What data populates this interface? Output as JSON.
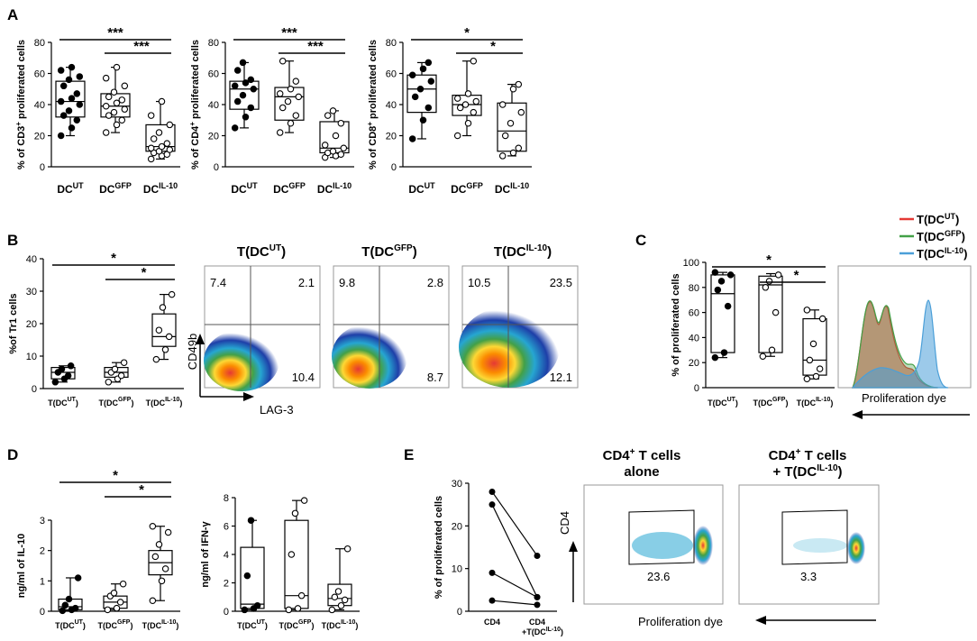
{
  "colors": {
    "red": "#e53935",
    "green": "#43a047",
    "blue": "#4b9fd8",
    "black": "#000000",
    "white": "#ffffff"
  },
  "panels": {
    "A": "A",
    "B": "B",
    "C": "C",
    "D": "D",
    "E": "E"
  },
  "sup": {
    "ut": "UT",
    "gfp": "GFP",
    "il10": "IL-10",
    "plus": "+"
  },
  "cat_prefix": {
    "dc": "DC",
    "t_open": "T(DC",
    "t_close": ")"
  },
  "flow": {
    "b_titles": [
      "T(DC",
      "T(DC",
      "T(DC"
    ],
    "b_axis_y": "CD49b",
    "b_axis_x": "LAG-3",
    "b_quadrants": [
      {
        "ul": "7.4",
        "ur": "2.1",
        "lr": "10.4"
      },
      {
        "ul": "9.8",
        "ur": "2.8",
        "lr": "8.7"
      },
      {
        "ul": "10.5",
        "ur": "23.5",
        "lr": "12.1"
      }
    ],
    "e_titles": [
      [
        "CD4",
        " T cells",
        "alone"
      ],
      [
        "CD4",
        " T cells",
        "+ T(DC"
      ]
    ],
    "e_axis_y": "CD4",
    "e_axis_x": "Proliferation dye",
    "e_gates": [
      "23.6",
      "3.3"
    ]
  },
  "histogram": {
    "axis_label": "Proliferation dye",
    "legend": [
      "T(DC",
      "T(DC",
      "T(DC"
    ]
  },
  "chart_data": [
    {
      "id": "A1",
      "type": "box",
      "ylabel": "% of CD3",
      "ylabel_sup": "+",
      "ylabel_tail": " proliferated cells",
      "ylim": [
        0,
        80
      ],
      "yticks": [
        0,
        20,
        40,
        60,
        80
      ],
      "categories": [
        "DC",
        "DC",
        "DC"
      ],
      "category_sup": [
        "UT",
        "GFP",
        "IL-10"
      ],
      "boxes": [
        {
          "min": 20,
          "q1": 32,
          "median": 42,
          "q3": 55,
          "max": 64,
          "points": [
            20,
            25,
            30,
            33,
            36,
            40,
            42,
            44,
            47,
            52,
            56,
            58,
            62,
            64
          ],
          "filled": true
        },
        {
          "min": 22,
          "q1": 32,
          "median": 39,
          "q3": 47,
          "max": 64,
          "points": [
            22,
            27,
            30,
            33,
            35,
            37,
            39,
            41,
            43,
            45,
            48,
            52,
            57,
            64
          ],
          "filled": false
        },
        {
          "min": 5,
          "q1": 10,
          "median": 13,
          "q3": 27,
          "max": 42,
          "points": [
            5,
            7,
            8,
            9,
            10,
            11,
            12,
            13,
            15,
            18,
            22,
            27,
            33,
            42
          ],
          "filled": false
        }
      ],
      "significance": [
        {
          "from": 0,
          "to": 2,
          "label": "***"
        },
        {
          "from": 1,
          "to": 2,
          "label": "***"
        }
      ]
    },
    {
      "id": "A2",
      "type": "box",
      "ylabel": "% of CD4",
      "ylabel_sup": "+",
      "ylabel_tail": " proliferated cells",
      "ylim": [
        0,
        80
      ],
      "yticks": [
        0,
        20,
        40,
        60,
        80
      ],
      "categories": [
        "DC",
        "DC",
        "DC"
      ],
      "category_sup": [
        "UT",
        "GFP",
        "IL-10"
      ],
      "boxes": [
        {
          "min": 25,
          "q1": 37,
          "median": 50,
          "q3": 55,
          "max": 67,
          "points": [
            25,
            32,
            38,
            42,
            46,
            50,
            52,
            54,
            56,
            62,
            67
          ],
          "filled": true
        },
        {
          "min": 22,
          "q1": 30,
          "median": 45,
          "q3": 51,
          "max": 68,
          "points": [
            22,
            28,
            33,
            38,
            42,
            45,
            47,
            50,
            55,
            68
          ],
          "filled": false
        },
        {
          "min": 6,
          "q1": 9,
          "median": 12,
          "q3": 29,
          "max": 36,
          "points": [
            6,
            7,
            8,
            9,
            10,
            12,
            14,
            20,
            28,
            33,
            36
          ],
          "filled": false
        }
      ],
      "significance": [
        {
          "from": 0,
          "to": 2,
          "label": "***"
        },
        {
          "from": 1,
          "to": 2,
          "label": "***"
        }
      ]
    },
    {
      "id": "A3",
      "type": "box",
      "ylabel": "% of CD8",
      "ylabel_sup": "+",
      "ylabel_tail": " proliferated cells",
      "ylim": [
        0,
        80
      ],
      "yticks": [
        0,
        20,
        40,
        60,
        80
      ],
      "categories": [
        "DC",
        "DC",
        "DC"
      ],
      "category_sup": [
        "UT",
        "GFP",
        "IL-10"
      ],
      "boxes": [
        {
          "min": 18,
          "q1": 35,
          "median": 50,
          "q3": 59,
          "max": 67,
          "points": [
            18,
            30,
            38,
            45,
            50,
            55,
            59,
            63,
            67
          ],
          "filled": true
        },
        {
          "min": 20,
          "q1": 33,
          "median": 40,
          "q3": 46,
          "max": 68,
          "points": [
            20,
            28,
            35,
            38,
            40,
            42,
            44,
            47,
            68
          ],
          "filled": false
        },
        {
          "min": 7,
          "q1": 10,
          "median": 23,
          "q3": 41,
          "max": 53,
          "points": [
            7,
            9,
            12,
            20,
            28,
            35,
            40,
            50,
            53
          ],
          "filled": false
        }
      ],
      "significance": [
        {
          "from": 0,
          "to": 2,
          "label": "*"
        },
        {
          "from": 1,
          "to": 2,
          "label": "*"
        }
      ]
    },
    {
      "id": "B",
      "type": "box",
      "ylabel": "%of Tr1 cells",
      "ylabel_sup": "",
      "ylabel_tail": "",
      "ylim": [
        0,
        40
      ],
      "yticks": [
        0,
        10,
        20,
        30,
        40
      ],
      "categories": [
        "T(DC",
        "T(DC",
        "T(DC"
      ],
      "category_sup": [
        "UT",
        "GFP",
        "IL-10"
      ],
      "boxes": [
        {
          "min": 2,
          "q1": 3,
          "median": 5,
          "q3": 6.5,
          "max": 7,
          "points": [
            2,
            3,
            4,
            5,
            6,
            7
          ],
          "filled": true
        },
        {
          "min": 2,
          "q1": 3.5,
          "median": 5,
          "q3": 6.5,
          "max": 8,
          "points": [
            2,
            3,
            4,
            5,
            6,
            8
          ],
          "filled": false
        },
        {
          "min": 9,
          "q1": 13,
          "median": 16,
          "q3": 23,
          "max": 29,
          "points": [
            9,
            12,
            16,
            18,
            25,
            29
          ],
          "filled": false
        }
      ],
      "significance": [
        {
          "from": 0,
          "to": 2,
          "label": "*"
        },
        {
          "from": 1,
          "to": 2,
          "label": "*"
        }
      ]
    },
    {
      "id": "C",
      "type": "box",
      "ylabel": "% of proliferated cells",
      "ylabel_sup": "",
      "ylabel_tail": "",
      "ylim": [
        0,
        100
      ],
      "yticks": [
        0,
        20,
        40,
        60,
        80,
        100
      ],
      "categories": [
        "T(DC",
        "T(DC",
        "T(DC"
      ],
      "category_sup": [
        "UT",
        "GFP",
        "IL-10"
      ],
      "boxes": [
        {
          "min": 24,
          "q1": 28,
          "median": 75,
          "q3": 90,
          "max": 92,
          "points": [
            24,
            28,
            65,
            78,
            85,
            90,
            92
          ],
          "filled": true
        },
        {
          "min": 25,
          "q1": 28,
          "median": 82,
          "q3": 89,
          "max": 91,
          "points": [
            25,
            30,
            60,
            80,
            85,
            90
          ],
          "filled": false
        },
        {
          "min": 7,
          "q1": 10,
          "median": 22,
          "q3": 55,
          "max": 62,
          "points": [
            7,
            9,
            15,
            22,
            35,
            55,
            62
          ],
          "filled": false
        }
      ],
      "significance": [
        {
          "from": 0,
          "to": 2,
          "label": "*"
        },
        {
          "from": 1,
          "to": 2,
          "label": "*"
        }
      ]
    },
    {
      "id": "D1",
      "type": "box",
      "ylabel": "ng/ml of IL-10",
      "ylabel_sup": "",
      "ylabel_tail": "",
      "ylim": [
        0,
        3
      ],
      "yticks": [
        0,
        1,
        2,
        3
      ],
      "categories": [
        "T(DC",
        "T(DC",
        "T(DC"
      ],
      "category_sup": [
        "UT",
        "GFP",
        "IL-10"
      ],
      "boxes": [
        {
          "min": 0.02,
          "q1": 0.05,
          "median": 0.15,
          "q3": 0.4,
          "max": 1.1,
          "points": [
            0.02,
            0.05,
            0.1,
            0.2,
            0.4,
            1.1
          ],
          "filled": true
        },
        {
          "min": 0.05,
          "q1": 0.1,
          "median": 0.3,
          "q3": 0.5,
          "max": 0.9,
          "points": [
            0.05,
            0.1,
            0.3,
            0.5,
            0.6,
            0.9
          ],
          "filled": false
        },
        {
          "min": 0.35,
          "q1": 1.2,
          "median": 1.6,
          "q3": 2.0,
          "max": 2.8,
          "points": [
            0.35,
            1.0,
            1.4,
            1.8,
            2.2,
            2.6,
            2.8
          ],
          "filled": false
        }
      ],
      "significance": [
        {
          "from": 0,
          "to": 2,
          "label": "*"
        },
        {
          "from": 1,
          "to": 2,
          "label": "*"
        }
      ]
    },
    {
      "id": "D2",
      "type": "box",
      "ylabel": "ng/ml of IFN-γ",
      "ylabel_sup": "",
      "ylabel_tail": "",
      "ylim": [
        0,
        8
      ],
      "yticks": [
        0,
        2,
        4,
        6,
        8
      ],
      "categories": [
        "T(DC",
        "T(DC",
        "T(DC"
      ],
      "category_sup": [
        "UT",
        "GFP",
        "IL-10"
      ],
      "boxes": [
        {
          "min": 0.1,
          "q1": 0.2,
          "median": 0.5,
          "q3": 4.5,
          "max": 6.4,
          "points": [
            0.1,
            0.2,
            0.4,
            2.5,
            6.4
          ],
          "filled": true
        },
        {
          "min": 0.1,
          "q1": 0.2,
          "median": 1.1,
          "q3": 6.4,
          "max": 7.8,
          "points": [
            0.1,
            0.2,
            1.1,
            4.0,
            6.9,
            7.8
          ],
          "filled": false
        },
        {
          "min": 0.1,
          "q1": 0.4,
          "median": 0.9,
          "q3": 1.9,
          "max": 4.4,
          "points": [
            0.1,
            0.4,
            0.8,
            1.0,
            1.4,
            4.4
          ],
          "filled": false
        }
      ],
      "significance": []
    },
    {
      "id": "E",
      "type": "paired-line",
      "ylabel": "% of proliferated cells",
      "ylim": [
        0,
        30
      ],
      "yticks": [
        0,
        10,
        20,
        30
      ],
      "categories": [
        "CD4",
        "CD4"
      ],
      "category_line2": [
        "",
        "+T(DC"
      ],
      "category_sup2": [
        "",
        "IL-10"
      ],
      "pairs": [
        [
          28,
          13
        ],
        [
          25,
          3.3
        ],
        [
          9,
          3.3
        ],
        [
          2.5,
          1.5
        ]
      ]
    }
  ]
}
